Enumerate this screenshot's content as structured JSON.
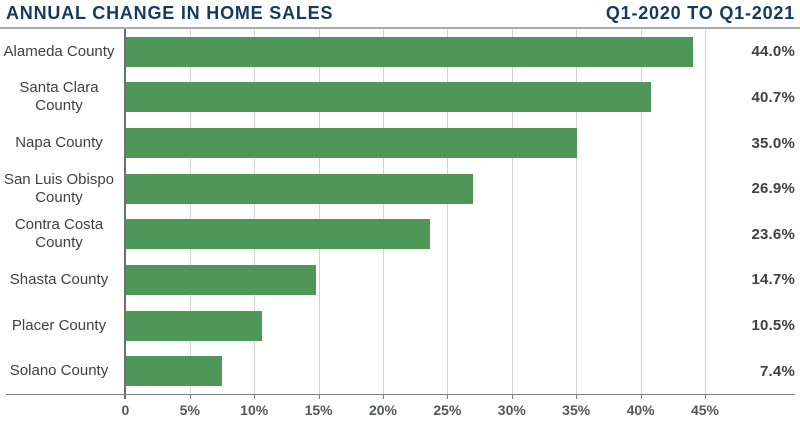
{
  "header": {
    "title": "ANNUAL CHANGE IN HOME SALES",
    "period": "Q1-2020 TO Q1-2021"
  },
  "chart_data": {
    "type": "bar",
    "orientation": "horizontal",
    "title": "ANNUAL CHANGE IN HOME SALES",
    "subtitle": "Q1-2020 TO Q1-2021",
    "categories": [
      "Alameda County",
      "Santa Clara\nCounty",
      "Napa County",
      "San Luis Obispo\nCounty",
      "Contra Costa\nCounty",
      "Shasta County",
      "Placer County",
      "Solano County"
    ],
    "values": [
      44.0,
      40.7,
      35.0,
      26.9,
      23.6,
      14.7,
      10.5,
      7.4
    ],
    "value_labels": [
      "44.0%",
      "40.7%",
      "35.0%",
      "26.9%",
      "23.6%",
      "14.7%",
      "10.5%",
      "7.4%"
    ],
    "x_tick_values": [
      0,
      5,
      10,
      15,
      20,
      25,
      30,
      35,
      40,
      45
    ],
    "x_tick_labels": [
      "0",
      "5%",
      "10%",
      "15%",
      "20%",
      "25%",
      "30%",
      "35%",
      "40%",
      "45%"
    ],
    "xlim": [
      0,
      50
    ],
    "grid": true,
    "legend": false,
    "bar_color": "#4F9659"
  },
  "colors": {
    "title_navy": "#16395F",
    "bar_green": "#4F9659",
    "gridline_gray": "#D1D3D4",
    "axis_gray": "#808285",
    "zero_axis_gray": "#6D6E71",
    "header_rule_gray": "#A7A9AC",
    "category_text": "#414042",
    "value_text": "#414042",
    "tick_text": "#55565A"
  }
}
